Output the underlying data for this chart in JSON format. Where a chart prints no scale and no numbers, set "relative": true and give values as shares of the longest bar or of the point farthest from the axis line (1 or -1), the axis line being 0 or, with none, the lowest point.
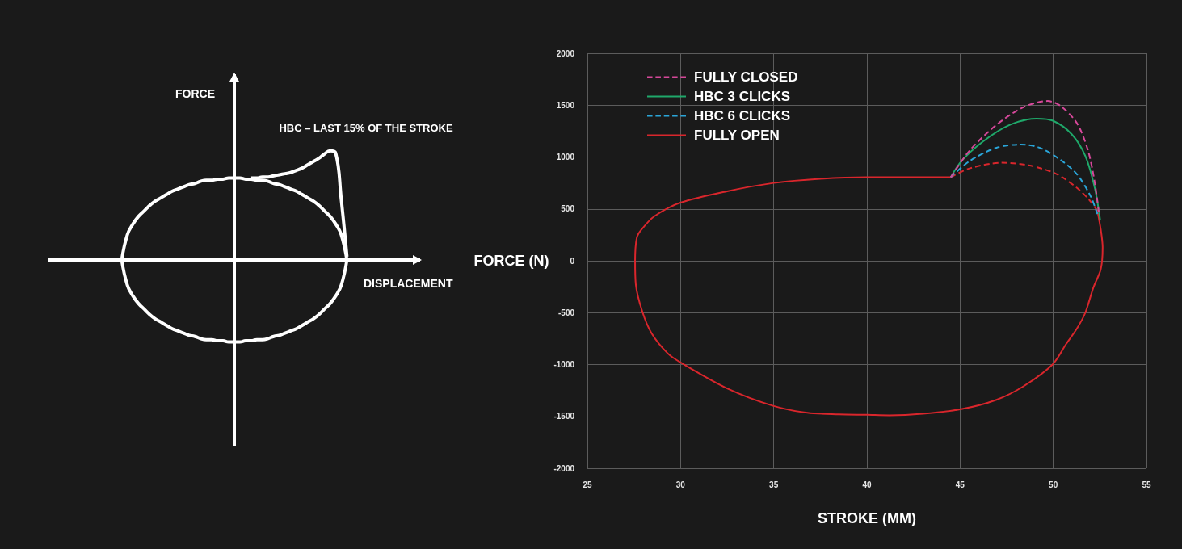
{
  "chart_data": [
    {
      "type": "line",
      "relative": true,
      "xlabel": "DISPLACEMENT",
      "ylabel": "FORCE",
      "annotations": [
        "HBC – LAST 15% OF THE STROKE"
      ],
      "categories": [
        null,
        null,
        null,
        null,
        null,
        null,
        null,
        null,
        null,
        null,
        null,
        null,
        null,
        null,
        null,
        null,
        null,
        null,
        null,
        null,
        null,
        null,
        null,
        null,
        null,
        null,
        null,
        null,
        null,
        null,
        null,
        null,
        null,
        null,
        null,
        null,
        null,
        null,
        null,
        null,
        null,
        null,
        null,
        null,
        null,
        null,
        null,
        null,
        null,
        null,
        null,
        null,
        null,
        null,
        null,
        null,
        null,
        null,
        null,
        null,
        null,
        null,
        null,
        null,
        null,
        null,
        null
      ],
      "series": [
        {
          "color": "#ffffff",
          "values": [
            null,
            null,
            null,
            null,
            null,
            null,
            null,
            null,
            null,
            null,
            null,
            null,
            null,
            0,
            0.23,
            0.33,
            0.4,
            0.45,
            0.5,
            0.54,
            0.57,
            0.6,
            0.63,
            0.65,
            0.67,
            0.69,
            0.7,
            0.72,
            0.73,
            0.73,
            0.74,
            0.74,
            0.75,
            0.75,
            0.75,
            0.74,
            0.74,
            0.73,
            0.73,
            0.72,
            0.7,
            0.69,
            0.67,
            0.65,
            0.63,
            0.6,
            0.57,
            0.54,
            0.5,
            0.45,
            0.4,
            0.33,
            0.23,
            0,
            null,
            null,
            null,
            null,
            null,
            null,
            null,
            null,
            null,
            null,
            null,
            null,
            null
          ]
        },
        {
          "color": "#ffffff",
          "values": [
            null,
            null,
            null,
            null,
            null,
            null,
            null,
            null,
            null,
            null,
            null,
            null,
            null,
            0,
            -0.23,
            -0.33,
            -0.4,
            -0.45,
            -0.5,
            -0.54,
            -0.57,
            -0.6,
            -0.63,
            -0.65,
            -0.67,
            -0.69,
            -0.7,
            -0.72,
            -0.73,
            -0.73,
            -0.74,
            -0.74,
            -0.75,
            -0.75,
            -0.75,
            -0.74,
            -0.74,
            -0.73,
            -0.73,
            -0.72,
            -0.7,
            -0.69,
            -0.67,
            -0.65,
            -0.63,
            -0.6,
            -0.57,
            -0.54,
            -0.5,
            -0.45,
            -0.4,
            -0.33,
            -0.23,
            0,
            null,
            null,
            null,
            null,
            null,
            null,
            null,
            null,
            null,
            null,
            null,
            null,
            null
          ]
        },
        {
          "color": "#ffffff",
          "values": [
            null,
            null,
            null,
            null,
            null,
            null,
            null,
            null,
            null,
            null,
            null,
            null,
            null,
            null,
            null,
            null,
            null,
            null,
            null,
            null,
            null,
            null,
            null,
            null,
            null,
            null,
            null,
            null,
            null,
            null,
            null,
            null,
            null,
            null,
            null,
            null,
            0.75,
            0.75,
            0.76,
            0.76,
            0.77,
            0.78,
            0.79,
            0.8,
            0.82,
            0.84,
            0.87,
            0.9,
            0.93,
            0.97,
            1.0,
            0.98,
            0.55,
            0.03,
            null,
            null,
            null,
            null,
            null,
            null,
            null,
            null,
            null,
            null,
            null,
            null,
            null
          ]
        }
      ]
    },
    {
      "type": "line",
      "xlabel": "STROKE (MM)",
      "ylabel": "FORCE (N)",
      "xlim": [
        25,
        55
      ],
      "xticks": [
        25,
        30,
        35,
        40,
        45,
        50,
        55
      ],
      "ylim": [
        -2000,
        2000
      ],
      "yticks": [
        -2000,
        -1500,
        -1000,
        -500,
        0,
        500,
        1000,
        1500,
        2000
      ],
      "grid": true,
      "legend": "top left",
      "series": [
        {
          "name": "FULLY CLOSED",
          "color": "#d6489a",
          "line_style": "dashed",
          "x": [
            44.5,
            45.5,
            46.95,
            48.4,
            49.7,
            50.41,
            51.29,
            51.87,
            52.23,
            52.44
          ],
          "values": [
            805,
            1060,
            1310,
            1480,
            1540,
            1490,
            1320,
            1060,
            750,
            470
          ]
        },
        {
          "name": "HBC 3 CLICKS",
          "color": "#1fa86a",
          "line_style": "solid",
          "x": [
            44.5,
            45.07,
            46.23,
            47.67,
            49.11,
            49.98,
            50.99,
            51.72,
            52.23,
            52.52
          ],
          "values": [
            805,
            960,
            1150,
            1310,
            1370,
            1350,
            1220,
            1010,
            700,
            390
          ]
        },
        {
          "name": "HBC 6 CLICKS",
          "color": "#2aa5d8",
          "line_style": "dashed",
          "x": [
            44.5,
            45.5,
            46.95,
            48.25,
            49.26,
            50.41,
            51.29,
            52.01,
            52.37
          ],
          "values": [
            805,
            960,
            1090,
            1120,
            1090,
            970,
            830,
            620,
            450
          ]
        },
        {
          "name": "FULLY OPEN",
          "color": "#d9262c",
          "line_style": "solid",
          "x": [
            52.37,
            52.55,
            52.65,
            52.62,
            52.52,
            52.15,
            51.72,
            51.28,
            50.7,
            49.96,
            48.4,
            46.95,
            45.06,
            43.0,
            41.2,
            40.0,
            38.5,
            36.8,
            35.0,
            32.5,
            30.0,
            29.3,
            28.45,
            27.95,
            27.6,
            27.56,
            27.65,
            27.9,
            28.6,
            30.0,
            32.5,
            35.0,
            37.5,
            40.0,
            44.5
          ],
          "values": [
            480,
            300,
            130,
            0,
            -100,
            -260,
            -500,
            -650,
            -800,
            -1000,
            -1210,
            -1340,
            -1430,
            -1475,
            -1490,
            -1485,
            -1480,
            -1465,
            -1400,
            -1230,
            -980,
            -890,
            -700,
            -490,
            -230,
            0,
            220,
            300,
            430,
            560,
            670,
            750,
            790,
            805,
            805
          ]
        },
        {
          "color": "#d9262c",
          "line_style": "dashed",
          "x": [
            44.5,
            45.5,
            47.24,
            48.68,
            50.13,
            51.29,
            52.01,
            52.37
          ],
          "values": [
            805,
            890,
            945,
            920,
            840,
            700,
            570,
            480
          ]
        }
      ]
    }
  ]
}
